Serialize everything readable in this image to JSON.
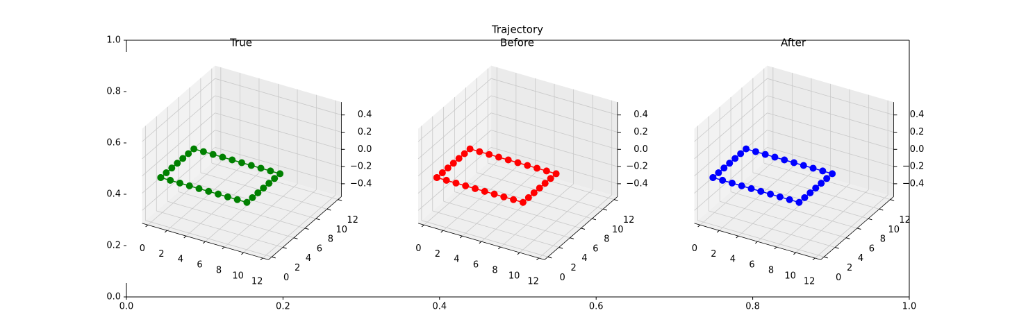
{
  "chart_data": {
    "type": "figure",
    "title": "Trajectory",
    "xlim": [
      0,
      1
    ],
    "ylim": [
      0,
      1
    ],
    "xticks": [
      {
        "value": 0,
        "label": "0.0"
      },
      0.2,
      0.4,
      0.6,
      0.8,
      {
        "value": 1,
        "label": "1.0"
      }
    ],
    "yticks": [
      {
        "value": 0,
        "label": "0.0"
      },
      0.2,
      0.4,
      0.6,
      0.8,
      {
        "value": 1,
        "label": "1.0"
      }
    ],
    "panels": [
      {
        "type": "line3d",
        "title": "True",
        "color": "#008000",
        "x": [
          1,
          1,
          1,
          1,
          1,
          1,
          1,
          2,
          3,
          4,
          5,
          6,
          7,
          8,
          9,
          10,
          10,
          10,
          10,
          10,
          10,
          10,
          9,
          8,
          7,
          6,
          5,
          4,
          3,
          2,
          1
        ],
        "y": [
          0,
          1,
          2,
          3,
          4,
          5,
          6,
          6,
          6,
          6,
          6,
          6,
          6,
          6,
          6,
          6,
          5,
          4,
          3,
          2,
          1,
          0,
          0,
          0,
          0,
          0,
          0,
          0,
          0,
          0,
          0
        ],
        "z": [
          0,
          0,
          0,
          0,
          0,
          0,
          0,
          0,
          0,
          0,
          0,
          0,
          0,
          0,
          0,
          0,
          0,
          0,
          0,
          0,
          0,
          0,
          0,
          0,
          0,
          0,
          0,
          0,
          0,
          0,
          0
        ],
        "xlim": [
          -0.6,
          12.6
        ],
        "ylim": [
          -0.6,
          12.6
        ],
        "zlim": [
          -0.55,
          0.55
        ],
        "xticks": [
          0,
          2,
          4,
          6,
          8,
          10,
          12
        ],
        "yticks": [
          0,
          2,
          4,
          6,
          8,
          10,
          12
        ],
        "zticks": [
          {
            "value": -0.4,
            "label": "−0.4"
          },
          {
            "value": -0.2,
            "label": "−0.2"
          },
          {
            "value": 0,
            "label": "0.0"
          },
          0.2,
          0.4
        ]
      },
      {
        "type": "line3d",
        "title": "Before",
        "color": "#ff0000",
        "x": [
          1,
          1,
          1,
          1,
          1,
          1,
          1,
          2,
          3,
          4,
          5,
          6,
          7,
          8,
          9,
          10,
          10,
          10,
          10,
          10,
          10,
          10,
          9,
          8,
          7,
          6,
          5,
          4,
          3,
          2,
          1
        ],
        "y": [
          0,
          1,
          2,
          3,
          4,
          5,
          6,
          6,
          6,
          6,
          6,
          6,
          6,
          6,
          6,
          6,
          5,
          4,
          3,
          2,
          1,
          0,
          0,
          0,
          0,
          0,
          0,
          0,
          0,
          0,
          0
        ],
        "z": [
          0,
          0,
          0,
          0,
          0,
          0,
          0,
          0,
          0,
          0,
          0,
          0,
          0,
          0,
          0,
          0,
          0,
          0,
          0,
          0,
          0,
          0,
          0,
          0,
          0,
          0,
          0,
          0,
          0,
          0,
          0
        ],
        "xlim": [
          -0.6,
          12.6
        ],
        "ylim": [
          -0.6,
          12.6
        ],
        "zlim": [
          -0.55,
          0.55
        ],
        "xticks": [
          0,
          2,
          4,
          6,
          8,
          10,
          12
        ],
        "yticks": [
          0,
          2,
          4,
          6,
          8,
          10,
          12
        ],
        "zticks": [
          {
            "value": -0.4,
            "label": "−0.4"
          },
          {
            "value": -0.2,
            "label": "−0.2"
          },
          {
            "value": 0,
            "label": "0.0"
          },
          0.2,
          0.4
        ]
      },
      {
        "type": "line3d",
        "title": "After",
        "color": "#0000ff",
        "x": [
          1,
          1,
          1,
          1,
          1,
          1,
          1,
          2,
          3,
          4,
          5,
          6,
          7,
          8,
          9,
          10,
          10,
          10,
          10,
          10,
          10,
          10,
          9,
          8,
          7,
          6,
          5,
          4,
          3,
          2,
          1
        ],
        "y": [
          0,
          1,
          2,
          3,
          4,
          5,
          6,
          6,
          6,
          6,
          6,
          6,
          6,
          6,
          6,
          6,
          5,
          4,
          3,
          2,
          1,
          0,
          0,
          0,
          0,
          0,
          0,
          0,
          0,
          0,
          0
        ],
        "z": [
          0,
          0,
          0,
          0,
          0,
          0,
          0,
          0,
          0,
          0,
          0,
          0,
          0,
          0,
          0,
          0,
          0,
          0,
          0,
          0,
          0,
          0,
          0,
          0,
          0,
          0,
          0,
          0,
          0,
          0,
          0
        ],
        "xlim": [
          -0.6,
          12.6
        ],
        "ylim": [
          -0.6,
          12.6
        ],
        "zlim": [
          -0.55,
          0.55
        ],
        "xticks": [
          0,
          2,
          4,
          6,
          8,
          10,
          12
        ],
        "yticks": [
          0,
          2,
          4,
          6,
          8,
          10,
          12
        ],
        "zticks": [
          {
            "value": -0.4,
            "label": "−0.4"
          },
          {
            "value": -0.2,
            "label": "−0.2"
          },
          {
            "value": 0,
            "label": "0.0"
          },
          0.2,
          0.4
        ]
      }
    ]
  }
}
